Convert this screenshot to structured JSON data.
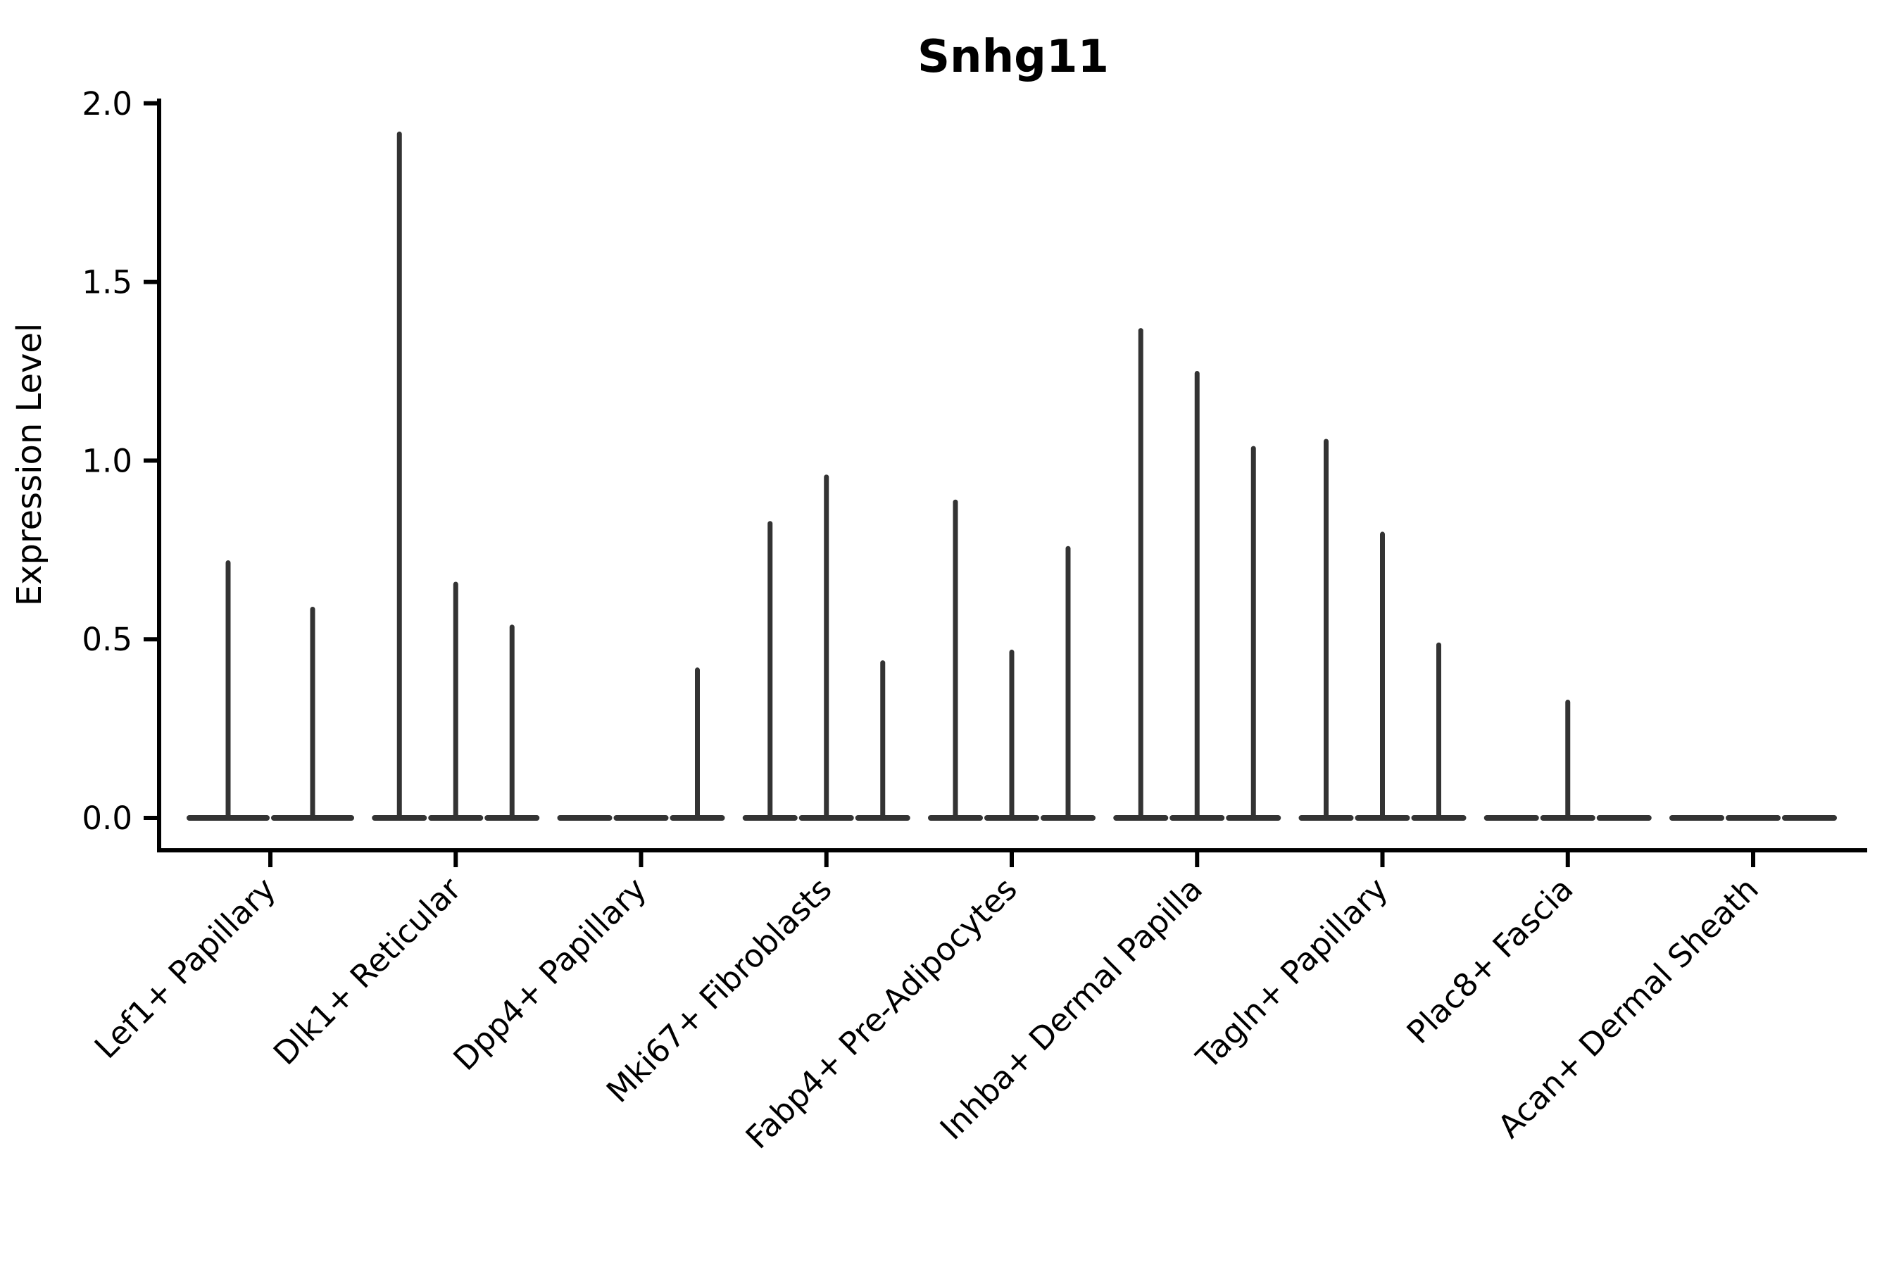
{
  "chart_data": {
    "type": "violin",
    "title": "Snhg11",
    "ylabel": "Expression Level",
    "xlabel": "",
    "ylim": [
      0.0,
      2.0
    ],
    "yticks": [
      "0.0",
      "0.5",
      "1.0",
      "1.5",
      "2.0"
    ],
    "ytick_values": [
      0.0,
      0.5,
      1.0,
      1.5,
      2.0
    ],
    "grid": false,
    "legend": "none",
    "categories": [
      "Lef1+ Papillary",
      "Dlk1+ Reticular",
      "Dpp4+ Papillary",
      "Mki67+ Fibroblasts",
      "Fabp4+ Pre-Adipocytes",
      "Inhba+ Dermal Papilla",
      "Tagln+ Papillary",
      "Plac8+ Fascia",
      "Acan+ Dermal Sheath"
    ],
    "groups": [
      {
        "label": "Lef1+ Papillary",
        "violin_max_values": [
          0.72,
          0.59
        ]
      },
      {
        "label": "Dlk1+ Reticular",
        "violin_max_values": [
          1.92,
          0.66,
          0.54
        ]
      },
      {
        "label": "Dpp4+ Papillary",
        "violin_max_values": [
          0,
          0,
          0.42
        ]
      },
      {
        "label": "Mki67+ Fibroblasts",
        "violin_max_values": [
          0.83,
          0.96,
          0.44
        ]
      },
      {
        "label": "Fabp4+ Pre-Adipocytes",
        "violin_max_values": [
          0.89,
          0.47,
          0.76
        ]
      },
      {
        "label": "Inhba+ Dermal Papilla",
        "violin_max_values": [
          1.37,
          1.25,
          1.04
        ]
      },
      {
        "label": "Tagln+ Papillary",
        "violin_max_values": [
          1.06,
          0.8,
          0.49
        ]
      },
      {
        "label": "Plac8+ Fascia",
        "violin_max_values": [
          0,
          0.33,
          0
        ]
      },
      {
        "label": "Acan+ Dermal Sheath",
        "violin_max_values": [
          0,
          0,
          0
        ]
      }
    ],
    "colors": {
      "violin_line": "#333333",
      "axis": "#000000",
      "text": "#000000",
      "background": "#ffffff"
    }
  }
}
